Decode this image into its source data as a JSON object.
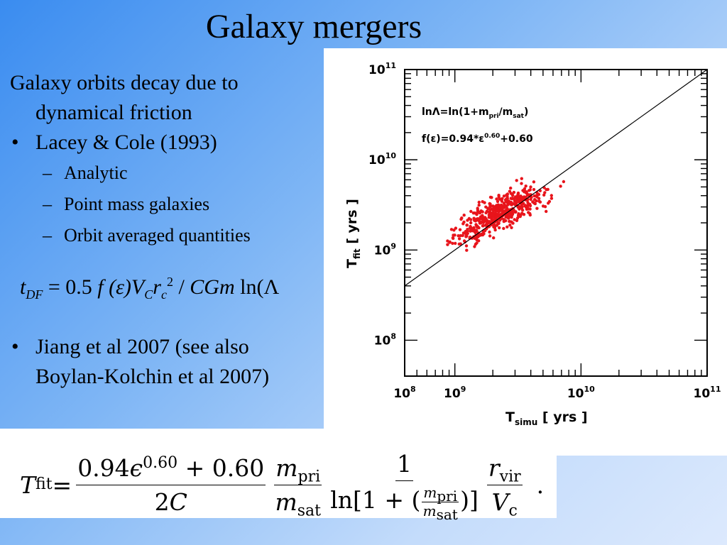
{
  "slide": {
    "title": "Galaxy mergers",
    "intro_line1": "Galaxy orbits decay due to",
    "intro_line2": "dynamical friction",
    "bullet1": "Lacey & Cole (1993)",
    "sub_bullets": [
      "Analytic",
      "Point mass galaxies",
      "Orbit averaged quantities"
    ],
    "bullet2_line1": "Jiang et al 2007  (see also",
    "bullet2_line2": "Boylan-Kolchin et al 2007)",
    "bullet_marker": "•",
    "sub_marker": "–"
  },
  "formula1": {
    "t": "t",
    "t_sub": "DF",
    "rhs_a": " = 0.5 ",
    "f": "f",
    "paren_eps": " (ε)",
    "V": "V",
    "V_sub": "C",
    "r": "r",
    "r_sub": "c",
    "r_sup": "2",
    "slash": " / ",
    "CGm": "CGm",
    "ln": " ln(Λ"
  },
  "formula2": {
    "lhs": "T",
    "lhs_sub": "fit",
    "equals": " = ",
    "num1_a": "0.94",
    "eps": "ϵ",
    "exp": "0.60",
    "num1_b": " + 0.60",
    "den1_a": "2",
    "den1_b": "C",
    "m": "m",
    "pri": "pri",
    "sat": "sat",
    "one": "1",
    "ln_open": "ln[1 + (",
    "ln_close": ")]",
    "r": "r",
    "vir": "vir",
    "V": "V",
    "c": "c",
    "period": "."
  },
  "chart_data": {
    "type": "scatter",
    "x_scale": "log",
    "y_scale": "log",
    "xlim": [
      400000000,
      100000000000
    ],
    "ylim": [
      40000000,
      100000000000
    ],
    "xlabel_main": "T",
    "xlabel_sub": "simu",
    "xlabel_unit": " [ yrs ]",
    "ylabel_main": "T",
    "ylabel_sub": "fit",
    "ylabel_unit": " [ yrs ]",
    "x_tick_labels": [
      {
        "value": 100000000,
        "base": "10",
        "exp": "8"
      },
      {
        "value": 1000000000,
        "base": "10",
        "exp": "9"
      },
      {
        "value": 10000000000,
        "base": "10",
        "exp": "10"
      },
      {
        "value": 100000000000,
        "base": "10",
        "exp": "11"
      }
    ],
    "y_tick_labels": [
      {
        "value": 100000000,
        "base": "10",
        "exp": "8"
      },
      {
        "value": 1000000000,
        "base": "10",
        "exp": "9"
      },
      {
        "value": 10000000000,
        "base": "10",
        "exp": "10"
      },
      {
        "value": 100000000000,
        "base": "10",
        "exp": "11"
      }
    ],
    "annotations": [
      "lnΛ=ln(1+m_pri/m_sat)",
      "f(ε)=0.94*ε^0.60+0.60"
    ],
    "annotation_parts": {
      "a1_pre": "lnΛ=ln(1+m",
      "a1_sub1": "pri",
      "a1_mid": "/m",
      "a1_sub2": "sat",
      "a1_post": ")",
      "a2_pre": "f(ε)=0.94*ε",
      "a2_sup": "0.60",
      "a2_post": "+0.60"
    },
    "reference_line": "y = x",
    "series": [
      {
        "color": "#e8141b",
        "center_x": 2200000000,
        "center_y": 2500000000,
        "point_count": 520
      }
    ]
  },
  "colors": {
    "points": "#e8141b",
    "axis": "#000000",
    "panel": "#ffffff"
  }
}
